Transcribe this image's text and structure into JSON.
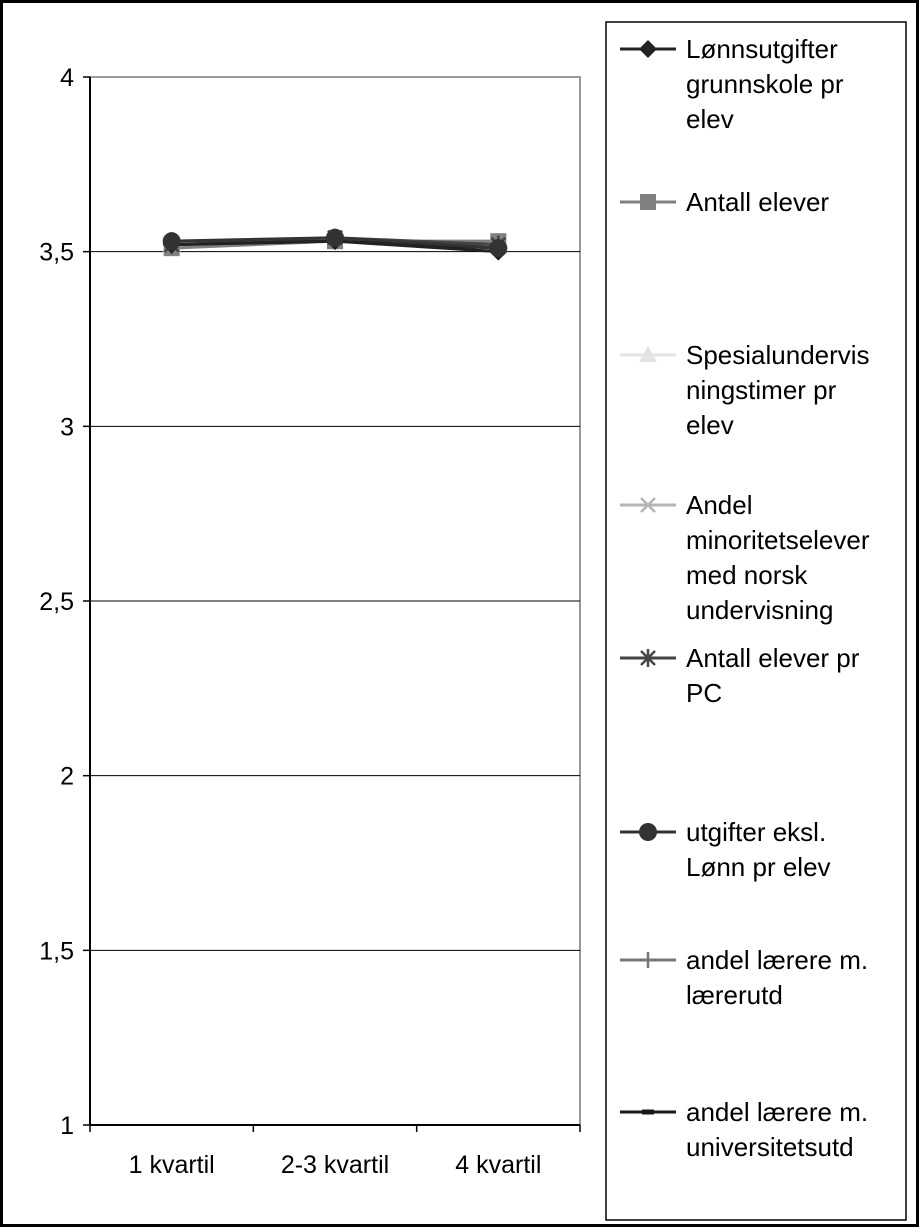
{
  "chart_data": {
    "type": "line",
    "categories": [
      "1 kvartil",
      "2-3 kvartil",
      "4 kvartil"
    ],
    "ylim": [
      1,
      4
    ],
    "yticks": [
      1,
      1.5,
      2,
      2.5,
      3,
      3.5,
      4
    ],
    "ytick_labels": [
      "1",
      "1,5",
      "2",
      "2,5",
      "3",
      "3,5",
      "4"
    ],
    "grid": true,
    "legend_position": "right",
    "series": [
      {
        "name": "Lønnsutgifter grunnskole pr elev",
        "values": [
          3.52,
          3.53,
          3.5
        ],
        "color": "#222222",
        "marker": "diamond"
      },
      {
        "name": "Antall elever",
        "values": [
          3.51,
          3.53,
          3.53
        ],
        "color": "#808080",
        "marker": "square"
      },
      {
        "name": "Spesialundervisningstimer pr elev",
        "values": [
          3.52,
          3.53,
          3.52
        ],
        "color": "#e3e3e3",
        "marker": "triangle"
      },
      {
        "name": "Andel minoritetselever med norsk undervisning",
        "values": [
          3.52,
          3.53,
          3.52
        ],
        "color": "#b4b4b4",
        "marker": "x"
      },
      {
        "name": "Antall elever pr PC",
        "values": [
          3.52,
          3.54,
          3.52
        ],
        "color": "#444444",
        "marker": "star"
      },
      {
        "name": "utgifter eksl. Lønn pr elev",
        "values": [
          3.53,
          3.54,
          3.51
        ],
        "color": "#333333",
        "marker": "circle"
      },
      {
        "name": "andel lærere m. lærerutd",
        "values": [
          3.52,
          3.53,
          3.52
        ],
        "color": "#777777",
        "marker": "plus"
      },
      {
        "name": "andel lærere m. universitetsutd",
        "values": [
          3.52,
          3.53,
          3.51
        ],
        "color": "#1a1a1a",
        "marker": "dash"
      }
    ]
  },
  "legend_labels": [
    [
      "Lønnsutgifter",
      "grunnskole pr",
      "elev"
    ],
    [
      "Antall elever"
    ],
    [
      "Spesialundervis",
      "ningstimer pr",
      "elev"
    ],
    [
      "Andel",
      "minoritetselever",
      "med norsk",
      "undervisning"
    ],
    [
      "Antall elever pr",
      "PC"
    ],
    [
      "utgifter eksl.",
      "Lønn pr elev"
    ],
    [
      "andel lærere m.",
      "lærerutd"
    ],
    [
      "andel lærere m.",
      "universitetsutd"
    ]
  ]
}
